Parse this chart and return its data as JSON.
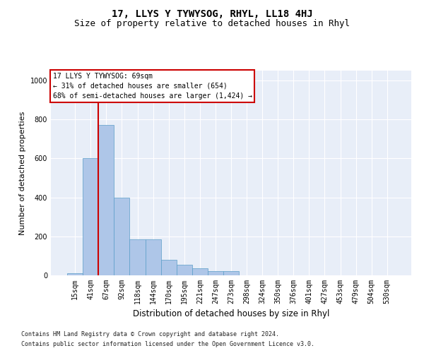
{
  "title": "17, LLYS Y TYWYSOG, RHYL, LL18 4HJ",
  "subtitle": "Size of property relative to detached houses in Rhyl",
  "xlabel": "Distribution of detached houses by size in Rhyl",
  "ylabel": "Number of detached properties",
  "bar_labels": [
    "15sqm",
    "41sqm",
    "67sqm",
    "92sqm",
    "118sqm",
    "144sqm",
    "170sqm",
    "195sqm",
    "221sqm",
    "247sqm",
    "273sqm",
    "298sqm",
    "324sqm",
    "350sqm",
    "376sqm",
    "401sqm",
    "427sqm",
    "453sqm",
    "479sqm",
    "504sqm",
    "530sqm"
  ],
  "bar_heights": [
    10,
    600,
    770,
    400,
    185,
    185,
    80,
    55,
    35,
    20,
    20,
    0,
    0,
    0,
    0,
    0,
    0,
    0,
    0,
    0,
    0
  ],
  "bar_color": "#aec6e8",
  "bar_edge_color": "#5a9ec8",
  "ylim": [
    0,
    1050
  ],
  "yticks": [
    0,
    200,
    400,
    600,
    800,
    1000
  ],
  "vline_x": 1.5,
  "vline_color": "#cc0000",
  "annotation_text": "17 LLYS Y TYWYSOG: 69sqm\n← 31% of detached houses are smaller (654)\n68% of semi-detached houses are larger (1,424) →",
  "annotation_box_color": "#cc0000",
  "footnote1": "Contains HM Land Registry data © Crown copyright and database right 2024.",
  "footnote2": "Contains public sector information licensed under the Open Government Licence v3.0.",
  "background_color": "#e8eef8",
  "grid_color": "#ffffff",
  "title_fontsize": 10,
  "subtitle_fontsize": 9,
  "tick_fontsize": 7,
  "ylabel_fontsize": 8,
  "xlabel_fontsize": 8.5,
  "footnote_fontsize": 6,
  "annotation_fontsize": 7
}
